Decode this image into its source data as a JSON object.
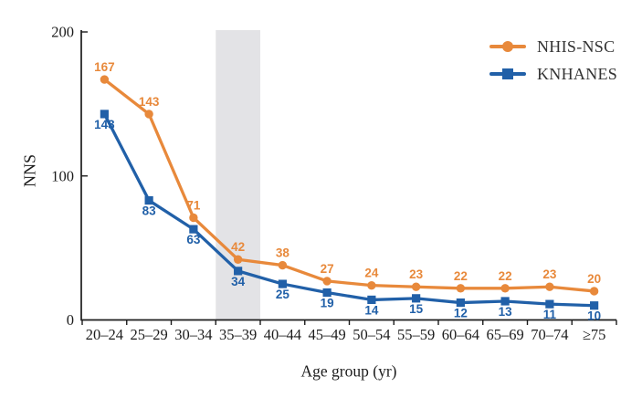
{
  "chart_data": {
    "type": "line",
    "title": "",
    "categories": [
      "20–24",
      "25–29",
      "30–34",
      "35–39",
      "40–44",
      "45–49",
      "50–54",
      "55–59",
      "60–64",
      "65–69",
      "70–74",
      "≥75"
    ],
    "series": [
      {
        "name": "NHIS-NSC",
        "marker": "circle",
        "color": "#E8893B",
        "values": [
          167,
          143,
          71,
          42,
          38,
          27,
          24,
          23,
          22,
          22,
          23,
          20
        ]
      },
      {
        "name": "KNHANES",
        "marker": "square",
        "color": "#2160A8",
        "values": [
          143,
          83,
          63,
          34,
          25,
          19,
          14,
          15,
          12,
          13,
          11,
          10
        ]
      }
    ],
    "xlabel": "Age group (yr)",
    "ylabel": "NNS",
    "ylim": [
      0,
      200
    ],
    "yticks": [
      0,
      100,
      200
    ],
    "grid": false,
    "legend_position": "top-right",
    "highlight_band": {
      "category": "35–39",
      "color": "#E3E3E6"
    }
  },
  "colors": {
    "axis": "#1C1C1C",
    "legend_text": "#333333"
  }
}
